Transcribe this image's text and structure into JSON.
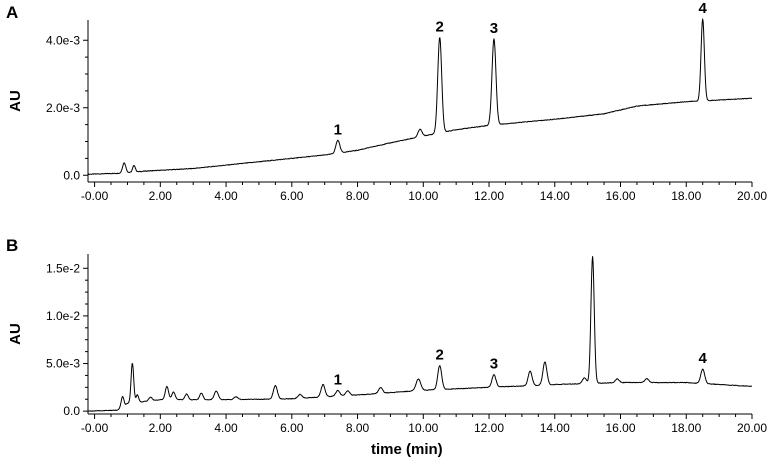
{
  "chart_data": [
    {
      "type": "line",
      "panel_label": "A",
      "xlabel": "",
      "ylabel": "AU",
      "xlim": [
        -0.2,
        20.0
      ],
      "ylim": [
        -0.0002,
        0.0046
      ],
      "x_ticks": [
        0,
        2,
        4,
        6,
        8,
        10,
        12,
        14,
        16,
        18,
        20
      ],
      "x_tick_labels": [
        "-0.00",
        "2.00",
        "4.00",
        "6.00",
        "8.00",
        "10.00",
        "12.00",
        "14.00",
        "16.00",
        "18.00",
        "20.00"
      ],
      "y_ticks": [
        0,
        0.002,
        0.004
      ],
      "y_tick_labels": [
        "0.0",
        "2.0e-3",
        "4.0e-3"
      ],
      "baseline": [
        [
          -0.2,
          3e-05
        ],
        [
          0.8,
          6e-05
        ],
        [
          1.5,
          0.00012
        ],
        [
          3.0,
          0.0002
        ],
        [
          5.0,
          0.0004
        ],
        [
          7.0,
          0.0006
        ],
        [
          8.0,
          0.00074
        ],
        [
          9.0,
          0.00096
        ],
        [
          10.0,
          0.00116
        ],
        [
          11.0,
          0.00135
        ],
        [
          12.0,
          0.00148
        ],
        [
          14.0,
          0.00166
        ],
        [
          15.5,
          0.00182
        ],
        [
          16.5,
          0.00205
        ],
        [
          18.0,
          0.00218
        ],
        [
          20.0,
          0.00228
        ]
      ],
      "peaks": [
        {
          "label": "",
          "rt": 0.9,
          "height": 0.0003,
          "width": 0.05
        },
        {
          "label": "",
          "rt": 1.2,
          "height": 0.0002,
          "width": 0.04
        },
        {
          "label": "1",
          "rt": 7.4,
          "height": 0.00038,
          "width": 0.06
        },
        {
          "label": "",
          "rt": 9.9,
          "height": 0.00022,
          "width": 0.06
        },
        {
          "label": "2",
          "rt": 10.5,
          "height": 0.00283,
          "width": 0.06
        },
        {
          "label": "3",
          "rt": 12.15,
          "height": 0.00255,
          "width": 0.06
        },
        {
          "label": "4",
          "rt": 18.5,
          "height": 0.00243,
          "width": 0.05
        }
      ]
    },
    {
      "type": "line",
      "panel_label": "B",
      "xlabel": "time (min)",
      "ylabel": "AU",
      "xlim": [
        -0.2,
        20.0
      ],
      "ylim": [
        -0.0003,
        0.0165
      ],
      "x_ticks": [
        0,
        2,
        4,
        6,
        8,
        10,
        12,
        14,
        16,
        18,
        20
      ],
      "x_tick_labels": [
        "-0.00",
        "2.00",
        "4.00",
        "6.00",
        "8.00",
        "10.00",
        "12.00",
        "14.00",
        "16.00",
        "18.00",
        "20.00"
      ],
      "y_ticks": [
        0,
        0.005,
        0.01,
        0.015
      ],
      "y_tick_labels": [
        "0.0",
        "5.0e-3",
        "1.0e-2",
        "1.5e-2"
      ],
      "baseline": [
        [
          -0.2,
          0.0
        ],
        [
          0.7,
          0.0001
        ],
        [
          1.0,
          0.0008
        ],
        [
          2.0,
          0.0012
        ],
        [
          4.0,
          0.0012
        ],
        [
          6.0,
          0.0013
        ],
        [
          8.0,
          0.0017
        ],
        [
          10.0,
          0.0022
        ],
        [
          12.0,
          0.0025
        ],
        [
          14.0,
          0.0028
        ],
        [
          16.0,
          0.003
        ],
        [
          18.0,
          0.003
        ],
        [
          20.0,
          0.0026
        ]
      ],
      "peaks": [
        {
          "label": "",
          "rt": 0.85,
          "height": 0.0011,
          "width": 0.04
        },
        {
          "label": "",
          "rt": 1.15,
          "height": 0.0042,
          "width": 0.04
        },
        {
          "label": "",
          "rt": 1.3,
          "height": 0.0008,
          "width": 0.04
        },
        {
          "label": "",
          "rt": 1.7,
          "height": 0.0004,
          "width": 0.05
        },
        {
          "label": "",
          "rt": 2.2,
          "height": 0.0014,
          "width": 0.05
        },
        {
          "label": "",
          "rt": 2.4,
          "height": 0.0008,
          "width": 0.05
        },
        {
          "label": "",
          "rt": 2.8,
          "height": 0.0006,
          "width": 0.05
        },
        {
          "label": "",
          "rt": 3.25,
          "height": 0.0007,
          "width": 0.05
        },
        {
          "label": "",
          "rt": 3.7,
          "height": 0.0009,
          "width": 0.06
        },
        {
          "label": "",
          "rt": 4.3,
          "height": 0.0003,
          "width": 0.06
        },
        {
          "label": "",
          "rt": 5.5,
          "height": 0.0014,
          "width": 0.06
        },
        {
          "label": "",
          "rt": 6.25,
          "height": 0.0004,
          "width": 0.06
        },
        {
          "label": "",
          "rt": 6.95,
          "height": 0.0013,
          "width": 0.06
        },
        {
          "label": "1",
          "rt": 7.4,
          "height": 0.0006,
          "width": 0.06
        },
        {
          "label": "",
          "rt": 7.7,
          "height": 0.0005,
          "width": 0.06
        },
        {
          "label": "",
          "rt": 8.7,
          "height": 0.0006,
          "width": 0.06
        },
        {
          "label": "",
          "rt": 9.85,
          "height": 0.0012,
          "width": 0.07
        },
        {
          "label": "2",
          "rt": 10.5,
          "height": 0.0025,
          "width": 0.06
        },
        {
          "label": "3",
          "rt": 12.15,
          "height": 0.0013,
          "width": 0.06
        },
        {
          "label": "",
          "rt": 13.25,
          "height": 0.0015,
          "width": 0.06
        },
        {
          "label": "",
          "rt": 13.7,
          "height": 0.0024,
          "width": 0.06
        },
        {
          "label": "",
          "rt": 14.9,
          "height": 0.0006,
          "width": 0.06
        },
        {
          "label": "",
          "rt": 15.15,
          "height": 0.0133,
          "width": 0.05
        },
        {
          "label": "",
          "rt": 15.9,
          "height": 0.0004,
          "width": 0.06
        },
        {
          "label": "",
          "rt": 16.8,
          "height": 0.0004,
          "width": 0.06
        },
        {
          "label": "4",
          "rt": 18.5,
          "height": 0.0015,
          "width": 0.06
        }
      ]
    }
  ]
}
